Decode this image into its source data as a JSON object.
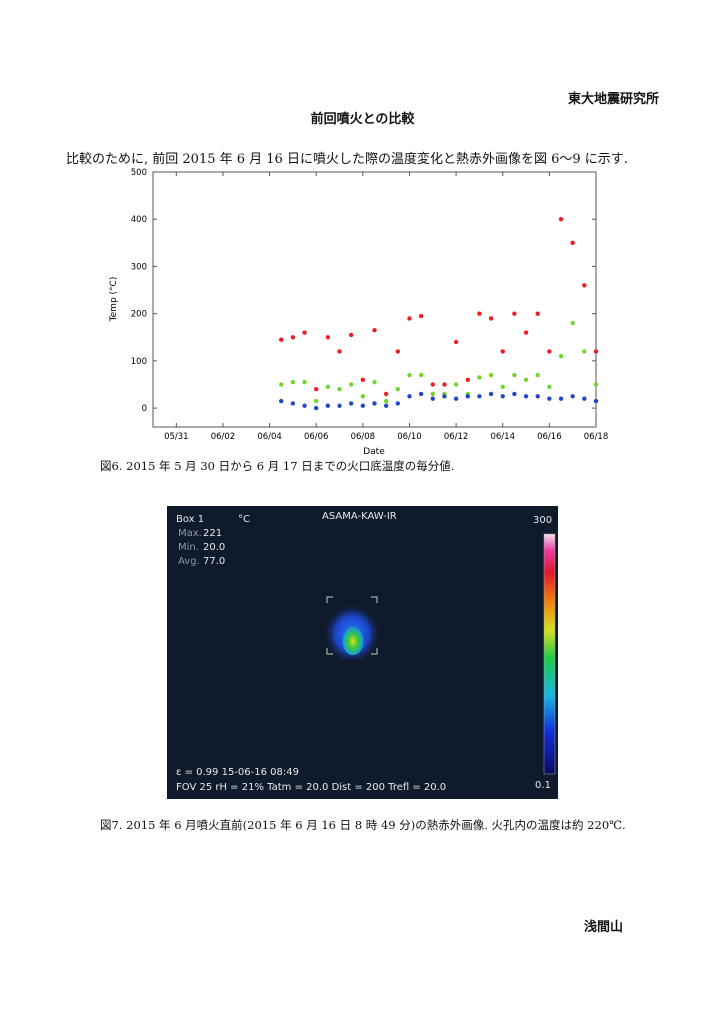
{
  "header": {
    "organization": "東大地震研究所",
    "title": "前回噴火との比較"
  },
  "intro_text": "比較のために, 前回 2015 年 6 月 16 日に噴火した際の温度変化と熱赤外画像を図 6～9 に示す.",
  "chart_data": {
    "type": "scatter",
    "title": "",
    "xlabel": "Date",
    "ylabel": "Temp (°C)",
    "xlim": [
      "05/30",
      "06/18"
    ],
    "ylim": [
      -40,
      500
    ],
    "x_ticks": [
      "05/31",
      "06/02",
      "06/04",
      "06/06",
      "06/08",
      "06/10",
      "06/12",
      "06/14",
      "06/16",
      "06/18"
    ],
    "y_ticks": [
      0,
      100,
      200,
      300,
      400,
      500
    ],
    "grid": false,
    "legend": "none",
    "series": [
      {
        "color": "#ee1c24",
        "x": [
          "06/04 12:00",
          "06/05",
          "06/05 12:00",
          "06/06",
          "06/06 12:00",
          "06/07",
          "06/07 12:00",
          "06/08",
          "06/08 12:00",
          "06/09",
          "06/09 12:00",
          "06/10",
          "06/10 12:00",
          "06/11",
          "06/11 12:00",
          "06/12",
          "06/12 12:00",
          "06/13",
          "06/13 12:00",
          "06/14",
          "06/14 12:00",
          "06/15",
          "06/15 12:00",
          "06/16",
          "06/16 12:00",
          "06/17",
          "06/17 12:00",
          "06/18"
        ],
        "y": [
          145,
          150,
          160,
          40,
          150,
          120,
          155,
          60,
          165,
          30,
          120,
          190,
          195,
          50,
          50,
          140,
          60,
          200,
          190,
          120,
          200,
          160,
          200,
          120,
          400,
          350,
          260,
          120
        ]
      },
      {
        "color": "#72d62a",
        "x": [
          "06/04 12:00",
          "06/05",
          "06/05 12:00",
          "06/06",
          "06/06 12:00",
          "06/07",
          "06/07 12:00",
          "06/08",
          "06/08 12:00",
          "06/09",
          "06/09 12:00",
          "06/10",
          "06/10 12:00",
          "06/11",
          "06/11 12:00",
          "06/12",
          "06/12 12:00",
          "06/13",
          "06/13 12:00",
          "06/14",
          "06/14 12:00",
          "06/15",
          "06/15 12:00",
          "06/16",
          "06/16 12:00",
          "06/17",
          "06/17 12:00",
          "06/18"
        ],
        "y": [
          50,
          55,
          55,
          15,
          45,
          40,
          50,
          25,
          55,
          15,
          40,
          70,
          70,
          30,
          30,
          50,
          30,
          65,
          70,
          45,
          70,
          60,
          70,
          45,
          110,
          180,
          120,
          50
        ]
      },
      {
        "color": "#2446c8",
        "x": [
          "06/04 12:00",
          "06/05",
          "06/05 12:00",
          "06/06",
          "06/06 12:00",
          "06/07",
          "06/07 12:00",
          "06/08",
          "06/08 12:00",
          "06/09",
          "06/09 12:00",
          "06/10",
          "06/10 12:00",
          "06/11",
          "06/11 12:00",
          "06/12",
          "06/12 12:00",
          "06/13",
          "06/13 12:00",
          "06/14",
          "06/14 12:00",
          "06/15",
          "06/15 12:00",
          "06/16",
          "06/16 12:00",
          "06/17",
          "06/17 12:00",
          "06/18"
        ],
        "y": [
          15,
          10,
          5,
          0,
          5,
          5,
          10,
          5,
          10,
          5,
          10,
          25,
          30,
          20,
          25,
          20,
          25,
          25,
          30,
          25,
          30,
          25,
          25,
          20,
          20,
          25,
          20,
          15
        ]
      }
    ]
  },
  "figure6_caption": "図6. 2015 年 5 月 30 日から 6 月 17 日までの火口底温度の毎分値.",
  "ir_image": {
    "box_label": "Box 1",
    "unit": "°C",
    "camera": "ASAMA-KAW-IR",
    "max_label": "Max.",
    "max_value": "221",
    "min_label": "Min.",
    "min_value": "20.0",
    "avg_label": "Avg.",
    "avg_value": "77.0",
    "scale_max": "300",
    "scale_min": "0.1",
    "status_line1": "ε = 0.99 15-06-16 08:49",
    "status_line2": "FOV 25  rH = 21%  Tatm = 20.0  Dist = 200  Trefl = 20.0"
  },
  "figure7_caption": "図7. 2015 年 6 月噴火直前(2015 年 6 月 16 日 8 時 49 分)の熱赤外画像. 火孔内の温度は約 220℃.",
  "footer": {
    "place": "浅間山"
  }
}
